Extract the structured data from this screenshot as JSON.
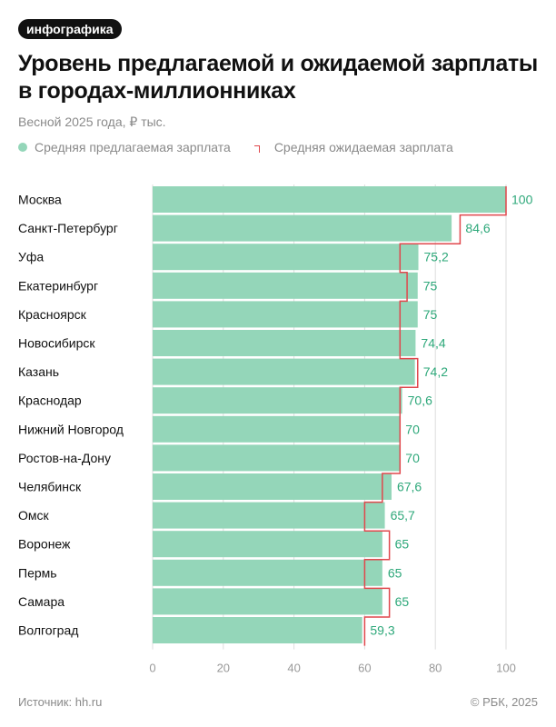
{
  "badge": "инфографика",
  "title": "Уровень предлагаемой и ожидаемой зарплаты в городах-миллионниках",
  "subtitle": "Весной 2025 года, ₽ тыс.",
  "footer": {
    "source": "Источник: hh.ru",
    "copyright": "© РБК, 2025"
  },
  "colors": {
    "bar": "#94d6b9",
    "expected_line": "#e0474c",
    "value_label": "#2ea87a",
    "axis_text": "#999999",
    "grid": "#dddddd"
  },
  "chart_data": {
    "type": "bar",
    "orientation": "horizontal",
    "categories": [
      "Москва",
      "Санкт-Петербург",
      "Уфа",
      "Екатеринбург",
      "Красноярск",
      "Новосибирск",
      "Казань",
      "Краснодар",
      "Нижний Новгород",
      "Ростов-на-Дону",
      "Челябинск",
      "Омск",
      "Воронеж",
      "Пермь",
      "Самара",
      "Волгоград"
    ],
    "series": [
      {
        "name": "Средняя предлагаемая зарплата",
        "values": [
          100,
          84.6,
          75.2,
          75,
          75,
          74.4,
          74.2,
          70.6,
          70,
          70,
          67.6,
          65.7,
          65,
          65,
          65,
          59.3
        ]
      },
      {
        "name": "Средняя ожидаемая зарплата",
        "values": [
          100,
          87,
          70,
          72,
          70,
          70,
          75,
          70,
          70,
          70,
          65,
          60,
          67,
          60,
          67,
          60
        ]
      }
    ],
    "value_labels": [
      "100",
      "84,6",
      "75,2",
      "75",
      "75",
      "74,4",
      "74,2",
      "70,6",
      "70",
      "70",
      "67,6",
      "65,7",
      "65",
      "65",
      "65",
      "59,3"
    ],
    "x_ticks": [
      0,
      20,
      40,
      60,
      80,
      100
    ],
    "xlim": [
      0,
      100
    ],
    "grid": true,
    "legend_position": "top-left"
  }
}
